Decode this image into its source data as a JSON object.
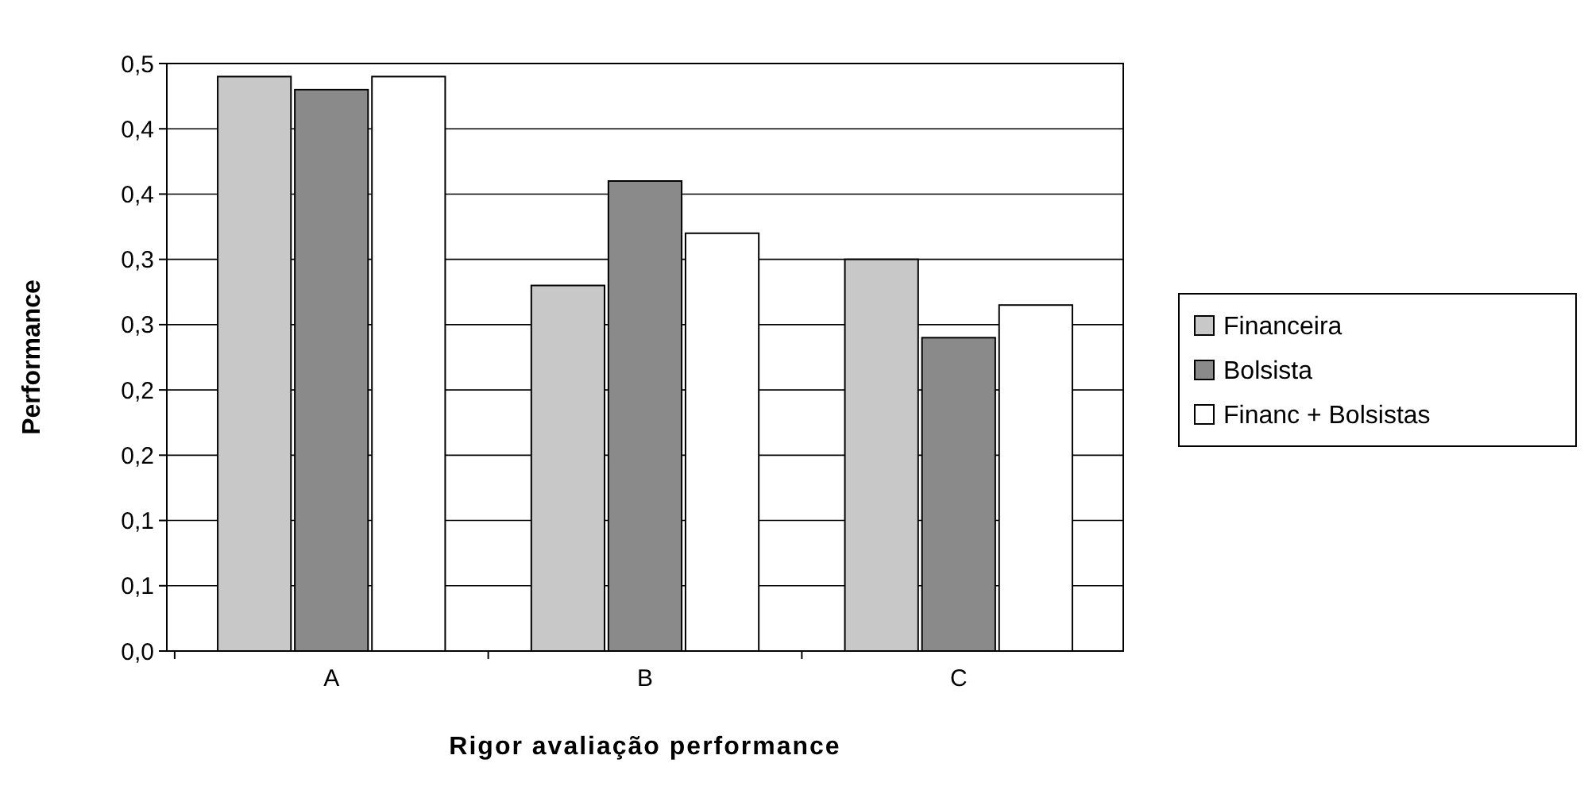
{
  "chart_data": {
    "type": "bar",
    "xlabel": "Rigor avaliação performance",
    "ylabel": "Performance",
    "categories": [
      "A",
      "B",
      "C"
    ],
    "series": [
      {
        "name": "Financeira",
        "color": "#c8c8c8",
        "values": [
          0.44,
          0.28,
          0.3
        ]
      },
      {
        "name": "Bolsista",
        "color": "#8a8a8a",
        "values": [
          0.43,
          0.36,
          0.24
        ]
      },
      {
        "name": "Financ + Bolsistas",
        "color": "#ffffff",
        "values": [
          0.44,
          0.32,
          0.265
        ]
      }
    ],
    "ylim": [
      0,
      0.45
    ],
    "yticks": [
      {
        "value": 0,
        "label": "0,0"
      },
      {
        "value": 0.05,
        "label": "0,1"
      },
      {
        "value": 0.1,
        "label": "0,1"
      },
      {
        "value": 0.15,
        "label": "0,2"
      },
      {
        "value": 0.2,
        "label": "0,2"
      },
      {
        "value": 0.25,
        "label": "0,3"
      },
      {
        "value": 0.3,
        "label": "0,3"
      },
      {
        "value": 0.35,
        "label": "0,4"
      },
      {
        "value": 0.4,
        "label": "0,4"
      },
      {
        "value": 0.45,
        "label": "0,5"
      }
    ],
    "grid": "y",
    "legend": "right"
  }
}
